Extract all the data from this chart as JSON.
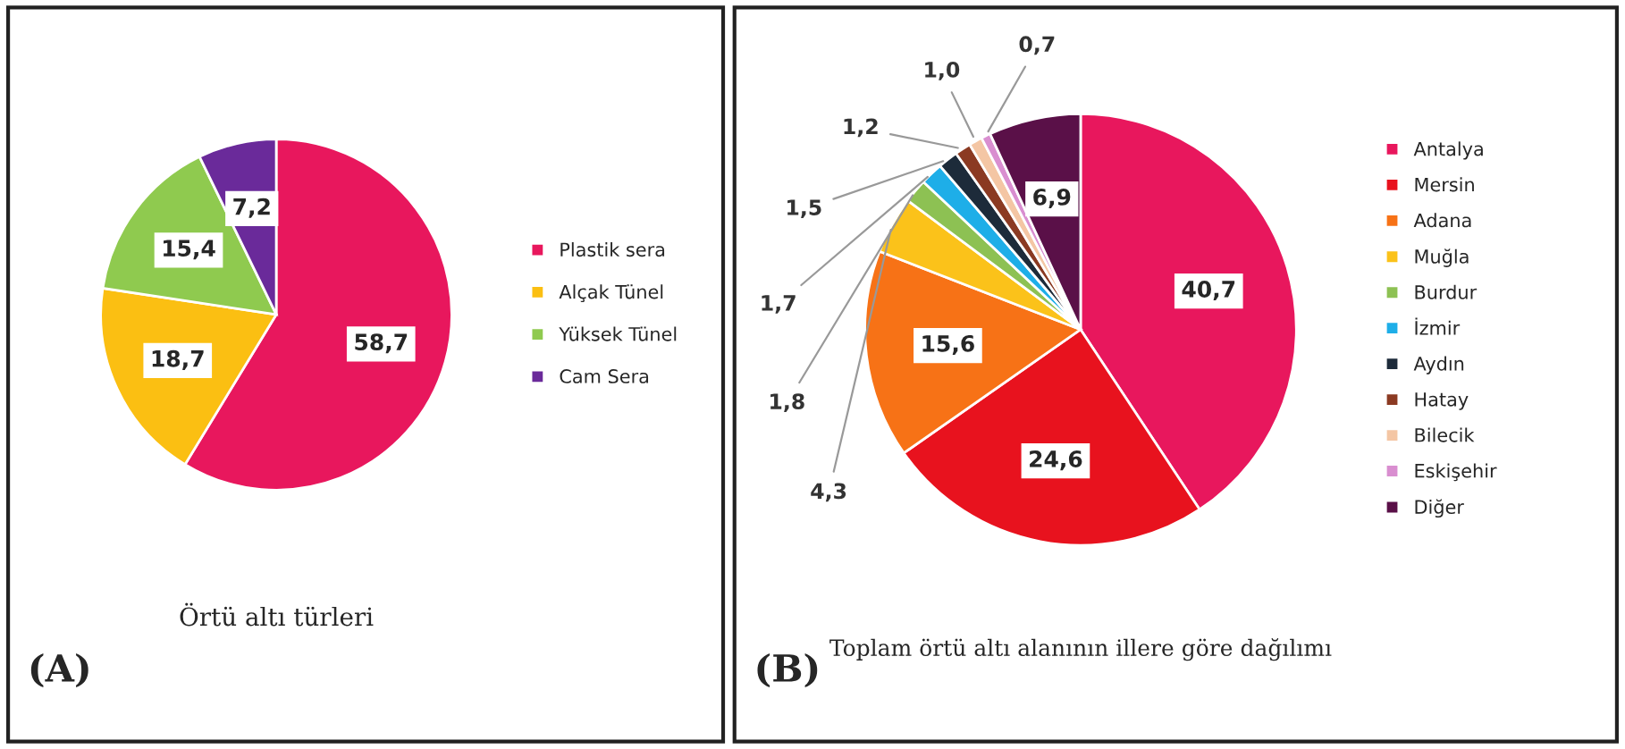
{
  "chart_data": [
    {
      "type": "pie",
      "title": "Örtü altı türleri",
      "annotations": [
        "(A)"
      ],
      "legend": "right",
      "categories": [
        "Plastik sera",
        "Alçak Tünel",
        "Yüksek Tünel",
        "Cam Sera"
      ],
      "values": [
        58.7,
        18.7,
        15.4,
        7.2
      ],
      "value_labels": [
        "58,7",
        "18,7",
        "15,4",
        "7,2"
      ],
      "colors": [
        "#e8175d",
        "#fbbf12",
        "#8fca4f",
        "#6a2a9a"
      ]
    },
    {
      "type": "pie",
      "title": "Toplam örtü altı alanının illere göre dağılımı",
      "annotations": [
        "(B)"
      ],
      "legend": "right",
      "categories": [
        "Antalya",
        "Mersin",
        "Adana",
        "Muğla",
        "Burdur",
        "İzmir",
        "Aydın",
        "Hatay",
        "Bilecik",
        "Eskişehir",
        "Diğer"
      ],
      "values": [
        40.7,
        24.6,
        15.6,
        4.3,
        1.8,
        1.7,
        1.5,
        1.2,
        1.0,
        0.7,
        6.9
      ],
      "value_labels": [
        "40,7",
        "24,6",
        "15,6",
        "4,3",
        "1,8",
        "1,7",
        "1,5",
        "1,2",
        "1,0",
        "0,7",
        "6,9"
      ],
      "colors": [
        "#e8175d",
        "#e8121e",
        "#f77216",
        "#fbc21a",
        "#8dc153",
        "#1eaee8",
        "#1d2b3a",
        "#8b3a22",
        "#f4c6a4",
        "#d98ed0",
        "#5a1048"
      ]
    }
  ]
}
